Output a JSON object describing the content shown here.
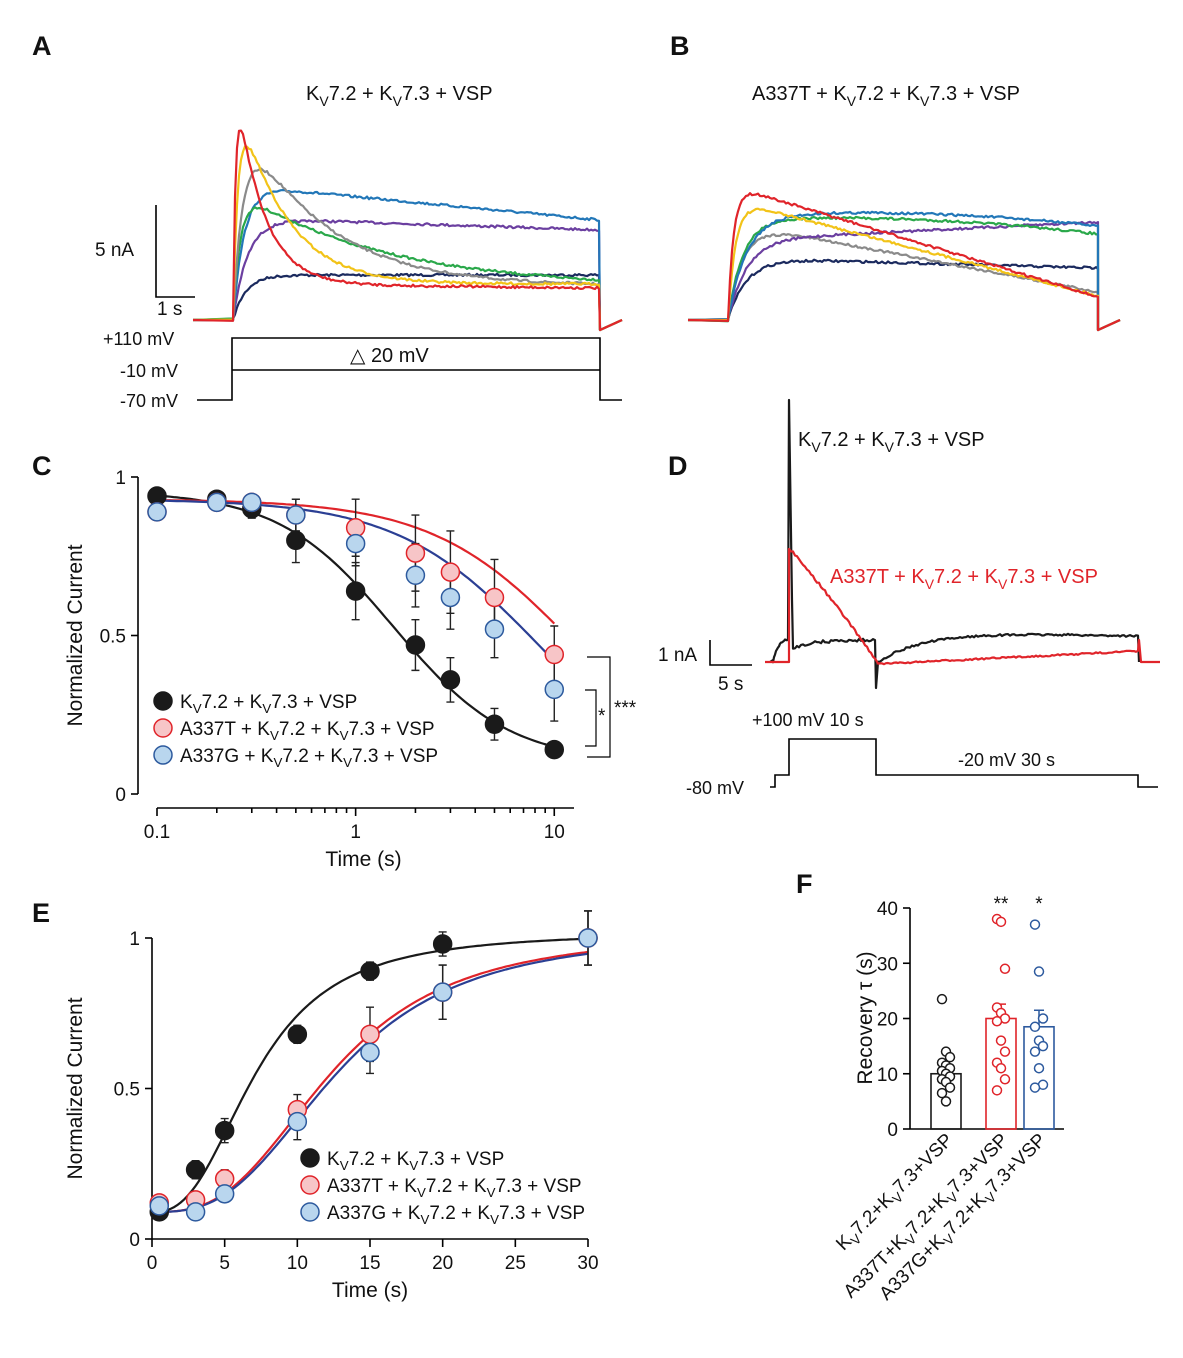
{
  "colors": {
    "black": "#1a1a1a",
    "red": "#e0242a",
    "red_fill": "#f7c5c7",
    "blue_line": "#2b3f94",
    "blue_fill": "#b9d6ee",
    "blue_edge": "#2d5a9e",
    "trace_blue": "#2277b8",
    "trace_purple": "#6b3fa0",
    "trace_green": "#2aa84a",
    "trace_gray": "#8a8a8a",
    "trace_yellow": "#f2c318",
    "trace_navy": "#1b2a5e"
  },
  "panel_A": {
    "label": "A",
    "title_parts": [
      "K",
      "V",
      "7.2 + K",
      "V",
      "7.3 + VSP"
    ],
    "scale_current": "5 nA",
    "scale_time": "1 s",
    "v_top": "+110 mV",
    "v_mid": "-10 mV",
    "v_hold": "-70 mV",
    "step": "△ 20 mV",
    "traces": [
      "red",
      "yellow",
      "gray",
      "green",
      "blue",
      "purple",
      "navy"
    ]
  },
  "panel_B": {
    "label": "B",
    "title_parts": [
      "A337T + K",
      "V",
      "7.2 + K",
      "V",
      "7.3 + VSP"
    ],
    "traces": [
      "red",
      "yellow",
      "gray",
      "green",
      "blue",
      "purple",
      "navy"
    ]
  },
  "panel_D": {
    "label": "D",
    "black_label_parts": [
      "K",
      "V",
      "7.2 + K",
      "V",
      "7.3 + VSP"
    ],
    "red_label_parts": [
      "A337T + K",
      "V",
      "7.2 + K",
      "V",
      "7.3 + VSP"
    ],
    "scale_current": "1 nA",
    "scale_time": "5 s",
    "pulse": "+100 mV 10 s",
    "hold": "-80 mV",
    "test": "-20 mV 30 s"
  },
  "chart_data": [
    {
      "panel": "C",
      "type": "scatter",
      "xlabel": "Time (s)",
      "ylabel": "Normalized Current",
      "xscale": "log",
      "xlim": [
        0.1,
        12
      ],
      "ylim": [
        0,
        1
      ],
      "xticks": [
        "0.1",
        "1",
        "10"
      ],
      "yticks": [
        "0",
        "0.5",
        "1"
      ],
      "legend_position": "bottom-left",
      "significance": [
        "*",
        "***"
      ],
      "series": [
        {
          "name_parts": [
            "K",
            "V",
            "7.2 + K",
            "V",
            "7.3 + VSP"
          ],
          "color": "black",
          "x": [
            0.1,
            0.2,
            0.3,
            0.5,
            1,
            2,
            3,
            5,
            10
          ],
          "y": [
            0.94,
            0.93,
            0.9,
            0.8,
            0.64,
            0.47,
            0.36,
            0.22,
            0.14
          ],
          "err": [
            0.02,
            0.02,
            0.03,
            0.07,
            0.09,
            0.08,
            0.07,
            0.05,
            0.02
          ]
        },
        {
          "name_parts": [
            "A337T + K",
            "V",
            "7.2 + K",
            "V",
            "7.3 + VSP"
          ],
          "color": "red",
          "x": [
            0.1,
            0.2,
            0.3,
            0.5,
            1,
            2,
            3,
            5,
            10
          ],
          "y": [
            0.89,
            0.92,
            0.92,
            0.88,
            0.84,
            0.76,
            0.7,
            0.62,
            0.44
          ],
          "err": [
            0.02,
            0.02,
            0.02,
            0.05,
            0.09,
            0.12,
            0.13,
            0.12,
            0.09
          ]
        },
        {
          "name_parts": [
            "A337G + K",
            "V",
            "7.2 + K",
            "V",
            "7.3 + VSP"
          ],
          "color": "blue",
          "x": [
            0.1,
            0.2,
            0.3,
            0.5,
            1,
            2,
            3,
            5,
            10
          ],
          "y": [
            0.89,
            0.92,
            0.92,
            0.88,
            0.79,
            0.69,
            0.62,
            0.52,
            0.33
          ],
          "err": [
            0.02,
            0.02,
            0.02,
            0.05,
            0.07,
            0.1,
            0.1,
            0.09,
            0.1
          ]
        }
      ]
    },
    {
      "panel": "E",
      "type": "scatter",
      "xlabel": "Time (s)",
      "ylabel": "Normalized Current",
      "xlim": [
        0,
        30
      ],
      "ylim": [
        0,
        1
      ],
      "xticks": [
        "0",
        "5",
        "10",
        "15",
        "20",
        "25",
        "30"
      ],
      "yticks": [
        "0",
        "0.5",
        "1"
      ],
      "legend_position": "bottom-right",
      "series": [
        {
          "name_parts": [
            "K",
            "V",
            "7.2 + K",
            "V",
            "7.3 + VSP"
          ],
          "color": "black",
          "x": [
            0.5,
            3,
            5,
            10,
            15,
            20,
            30
          ],
          "y": [
            0.09,
            0.23,
            0.36,
            0.68,
            0.89,
            0.98,
            1.0
          ],
          "err": [
            0.02,
            0.03,
            0.04,
            0.03,
            0.03,
            0.04,
            0.09
          ]
        },
        {
          "name_parts": [
            "A337T + K",
            "V",
            "7.2 + K",
            "V",
            "7.3 + VSP"
          ],
          "color": "red",
          "x": [
            0.5,
            3,
            5,
            10,
            15,
            20,
            30
          ],
          "y": [
            0.12,
            0.13,
            0.2,
            0.43,
            0.68,
            0.82,
            1.0
          ],
          "err": [
            0.02,
            0.02,
            0.03,
            0.05,
            0.09,
            0.09,
            0.09
          ]
        },
        {
          "name_parts": [
            "A337G + K",
            "V",
            "7.2 + K",
            "V",
            "7.3 + VSP"
          ],
          "color": "blue",
          "x": [
            0.5,
            3,
            5,
            10,
            15,
            20,
            30
          ],
          "y": [
            0.11,
            0.09,
            0.15,
            0.39,
            0.62,
            0.82,
            1.0
          ],
          "err": [
            0.02,
            0.02,
            0.02,
            0.06,
            0.07,
            0.09,
            0.09
          ]
        }
      ]
    },
    {
      "panel": "F",
      "type": "bar",
      "ylabel": "Recovery τ (s)",
      "ylim": [
        0,
        40
      ],
      "yticks": [
        "0",
        "10",
        "20",
        "30",
        "40"
      ],
      "categories_parts": [
        [
          "K",
          "V",
          "7.2+K",
          "V",
          "7.3+VSP"
        ],
        [
          "A337T+K",
          "V",
          "7.2+K",
          "V",
          "7.3+VSP"
        ],
        [
          "A337G+K",
          "V",
          "7.2+K",
          "V",
          "7.3+VSP"
        ]
      ],
      "colors": [
        "black",
        "red",
        "blue"
      ],
      "values": [
        10,
        20,
        18.5
      ],
      "sem": [
        1.2,
        2.6,
        3.0
      ],
      "significance": [
        "",
        "**",
        "*"
      ],
      "points": [
        [
          23.5,
          14,
          13,
          12,
          11.5,
          11,
          10.5,
          10,
          9.5,
          9,
          8.5,
          7.5,
          6.5,
          5
        ],
        [
          38,
          37.5,
          29,
          22,
          21,
          20,
          19.5,
          16,
          14,
          12,
          11,
          9,
          7
        ],
        [
          37,
          28.5,
          20,
          18.5,
          16,
          15,
          14,
          11,
          8,
          7.5
        ]
      ]
    }
  ]
}
